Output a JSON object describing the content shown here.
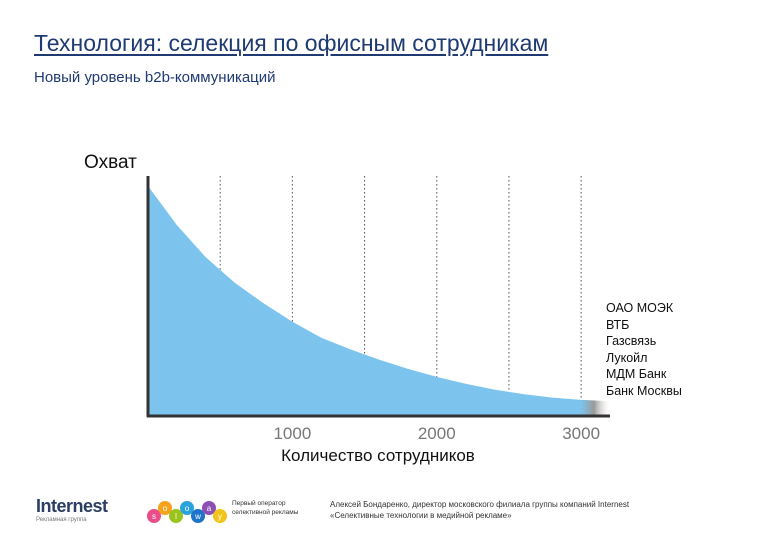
{
  "header": {
    "title": "Технология: селекция по офисным сотрудникам",
    "subtitle": "Новый уровень b2b-коммуникаций"
  },
  "chart_data": {
    "type": "area",
    "ylabel": "Охват",
    "xlabel": "Количество сотрудников",
    "x_ticks": [
      1000,
      2000,
      3000
    ],
    "gridlines_x": [
      500,
      1000,
      1500,
      2000,
      2500,
      3000
    ],
    "xlim": [
      0,
      3200
    ],
    "ylim": [
      0,
      100
    ],
    "grid": "vertical dotted",
    "fill_color": "#7cc4ee",
    "tail_color": "#9a9a9a",
    "series": [
      {
        "x": [
          0,
          200,
          400,
          600,
          800,
          1000,
          1200,
          1400,
          1600,
          1800,
          2000,
          2200,
          2400,
          2600,
          2800,
          3000,
          3200
        ],
        "values": [
          100,
          83,
          69,
          58,
          49,
          41,
          34,
          29,
          24.5,
          20.5,
          17,
          14,
          11.5,
          9.5,
          8,
          7,
          6.5
        ]
      }
    ],
    "annotation_companies": [
      "ОАО МОЭК",
      "ВТБ",
      "Газсвязь",
      "Лукойл",
      "МДМ Банк",
      "Банк Москвы"
    ]
  },
  "footer": {
    "logo_word": "Internest",
    "logo_tag": "Рекламная группа",
    "soloway_letters": [
      "s",
      "o",
      "l",
      "o",
      "w",
      "a",
      "y"
    ],
    "soloway_tag": "Первый оператор селективной рекламы",
    "credit_line1": "Алексей Бондаренко, директор московского филиала группы компаний Internest",
    "credit_line2": "«Селективные технологии в медийной рекламе»"
  }
}
